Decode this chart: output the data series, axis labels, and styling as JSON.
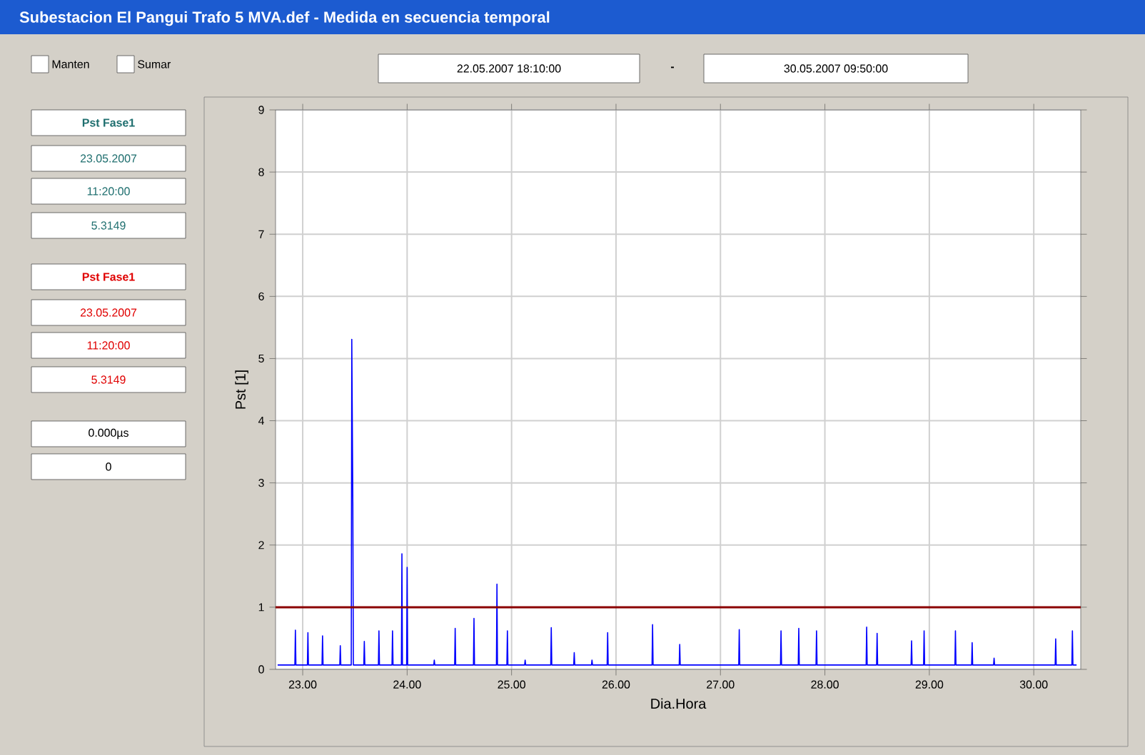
{
  "chart_data": {
    "type": "line",
    "title": "Subestacion El Pangui Trafo 5 MVA.def - Medida en secuencia temporal",
    "xlabel": "Dia.Hora",
    "ylabel": "Pst [1]",
    "annotations": [
      "Manten",
      "Sumar",
      "22.05.2007    18:10:00",
      "-",
      "30.05.2007    09:50:00",
      "Pst Fase1",
      "23.05.2007",
      "11:20:00",
      "5.3149",
      "Pst Fase1",
      "23.05.2007",
      "11:20:00",
      "5.3149",
      "0.000µs",
      "0"
    ],
    "x": [
      22.76,
      22.925,
      22.93,
      22.935,
      23.045,
      23.05,
      23.055,
      23.185,
      23.19,
      23.195,
      23.355,
      23.36,
      23.365,
      23.465,
      23.47,
      23.48,
      23.485,
      23.585,
      23.59,
      23.595,
      23.725,
      23.73,
      23.735,
      23.855,
      23.86,
      23.865,
      23.945,
      23.95,
      23.955,
      23.995,
      24.0,
      24.005,
      24.255,
      24.26,
      24.265,
      24.455,
      24.46,
      24.465,
      24.635,
      24.64,
      24.645,
      24.855,
      24.86,
      24.865,
      24.955,
      24.96,
      24.965,
      25.125,
      25.13,
      25.135,
      25.375,
      25.38,
      25.385,
      25.595,
      25.6,
      25.605,
      25.765,
      25.77,
      25.775,
      25.915,
      25.92,
      25.925,
      26.345,
      26.35,
      26.355,
      26.605,
      26.61,
      26.615,
      27.175,
      27.18,
      27.185,
      27.575,
      27.58,
      27.585,
      27.745,
      27.75,
      27.755,
      27.915,
      27.92,
      27.925,
      28.395,
      28.4,
      28.405,
      28.495,
      28.5,
      28.505,
      28.825,
      28.83,
      28.835,
      28.945,
      28.95,
      28.955,
      29.245,
      29.25,
      29.255,
      29.405,
      29.41,
      29.415,
      29.615,
      29.62,
      29.625,
      30.205,
      30.21,
      30.215,
      30.365,
      30.37,
      30.375,
      30.41
    ],
    "values": [
      0.07,
      0.07,
      0.63,
      0.07,
      0.07,
      0.59,
      0.07,
      0.07,
      0.54,
      0.07,
      0.07,
      0.38,
      0.07,
      0.07,
      5.31,
      2.67,
      0.07,
      0.07,
      0.45,
      0.07,
      0.07,
      0.62,
      0.07,
      0.07,
      0.62,
      0.07,
      0.07,
      1.86,
      0.07,
      0.07,
      1.64,
      0.07,
      0.07,
      0.15,
      0.07,
      0.07,
      0.66,
      0.07,
      0.07,
      0.82,
      0.07,
      0.07,
      1.37,
      0.07,
      0.07,
      0.62,
      0.07,
      0.07,
      0.15,
      0.07,
      0.07,
      0.67,
      0.07,
      0.07,
      0.27,
      0.07,
      0.07,
      0.15,
      0.07,
      0.07,
      0.59,
      0.07,
      0.07,
      0.72,
      0.07,
      0.07,
      0.4,
      0.07,
      0.07,
      0.64,
      0.07,
      0.07,
      0.62,
      0.07,
      0.07,
      0.66,
      0.07,
      0.07,
      0.62,
      0.07,
      0.07,
      0.68,
      0.07,
      0.07,
      0.58,
      0.07,
      0.07,
      0.46,
      0.07,
      0.07,
      0.62,
      0.07,
      0.07,
      0.62,
      0.07,
      0.07,
      0.43,
      0.07,
      0.07,
      0.18,
      0.07,
      0.07,
      0.49,
      0.07,
      0.07,
      0.62,
      0.07,
      0.07
    ],
    "color": "#0000ff",
    "xlim": [
      22.74,
      30.45
    ],
    "xticks": [
      {
        "value": 23,
        "label": "23.00"
      },
      {
        "value": 24,
        "label": "24.00"
      },
      {
        "value": 25,
        "label": "25.00"
      },
      {
        "value": 26,
        "label": "26.00"
      },
      {
        "value": 27,
        "label": "27.00"
      },
      {
        "value": 28,
        "label": "28.00"
      },
      {
        "value": 29,
        "label": "29.00"
      },
      {
        "value": 30,
        "label": "30.00"
      }
    ],
    "ylim": [
      0,
      9
    ],
    "yticks": [
      0,
      1,
      2,
      3,
      4,
      5,
      6,
      7,
      8,
      9
    ],
    "ref_lines": [
      {
        "axis": "y",
        "value": 1,
        "color": "#8b0000"
      }
    ],
    "grid": true
  }
}
